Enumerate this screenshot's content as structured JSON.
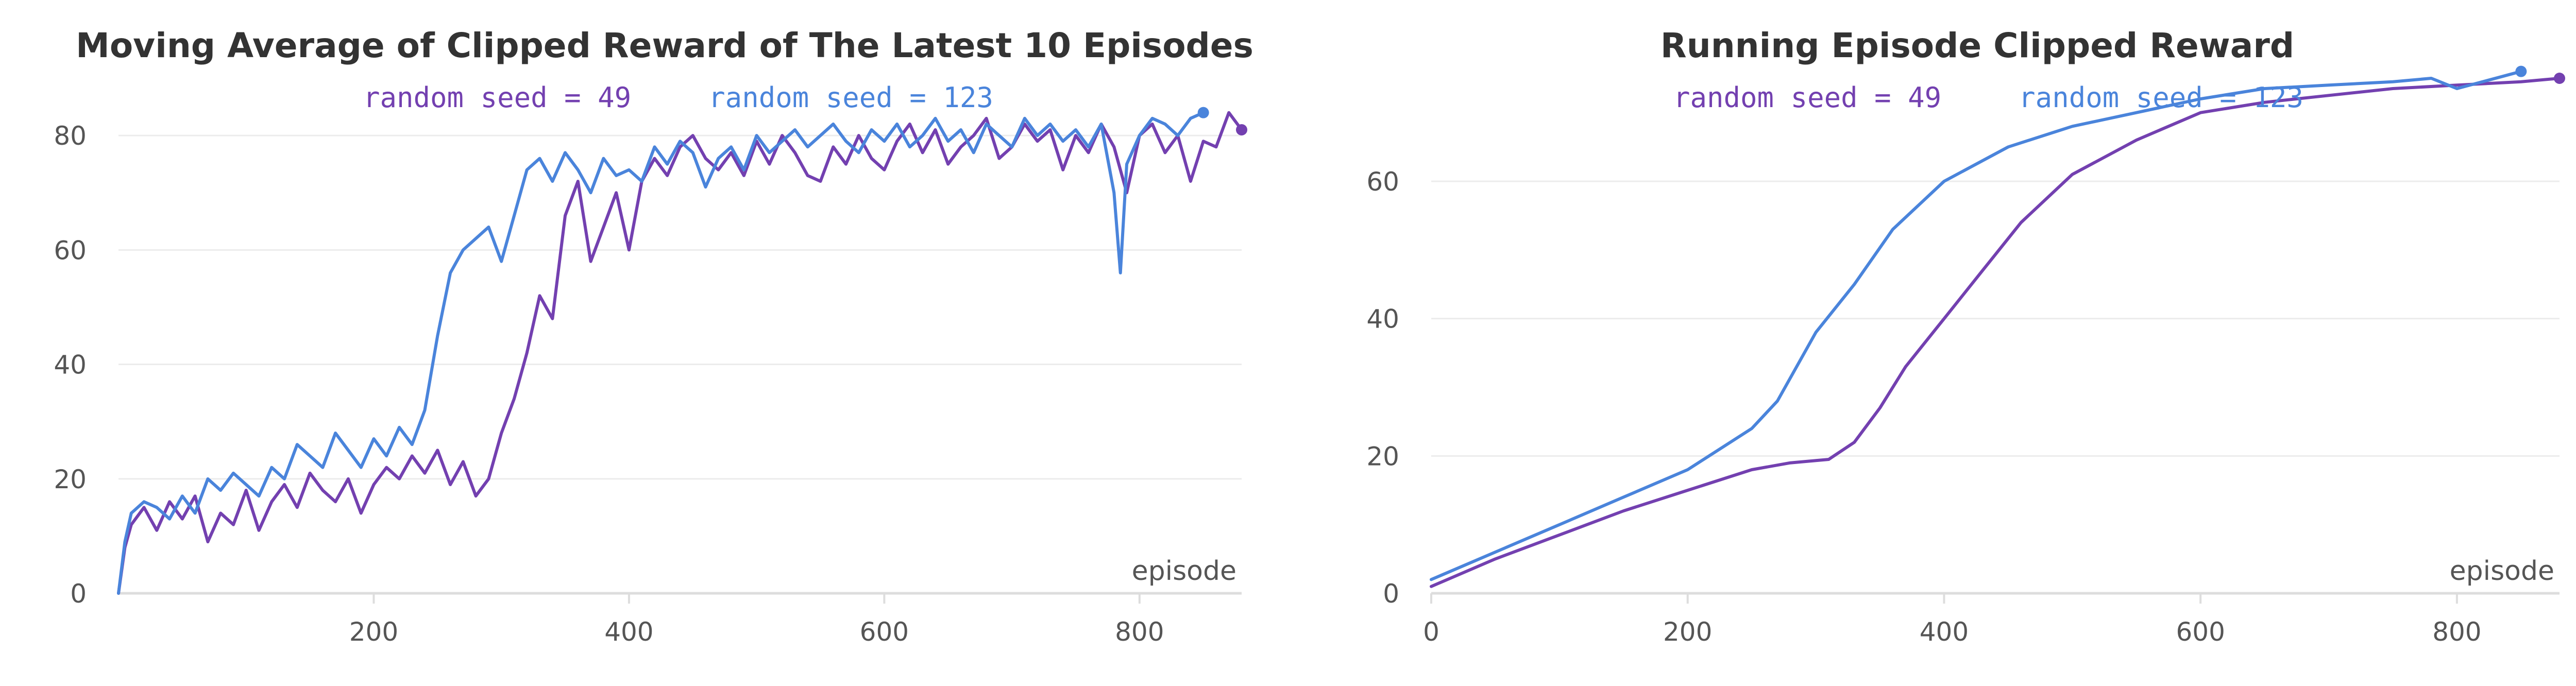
{
  "colors": {
    "seed49": "#7340b0",
    "seed123": "#4a84db",
    "grid": "#ececec",
    "axis": "#dddddd",
    "tick": "#555555",
    "title": "#333333"
  },
  "chart_data": [
    {
      "type": "line",
      "title": "Moving Average of Clipped Reward of The Latest 10 Episodes",
      "xlabel": "episode",
      "ylabel": "",
      "xlim": [
        0,
        880
      ],
      "ylim": [
        0,
        90
      ],
      "x_ticks": [
        200,
        400,
        600,
        800
      ],
      "y_ticks": [
        0,
        20,
        40,
        60,
        80
      ],
      "grid": true,
      "legend": "top-center",
      "series": [
        {
          "name": "random seed = 49",
          "x": [
            0,
            5,
            10,
            20,
            30,
            40,
            50,
            60,
            70,
            80,
            90,
            100,
            110,
            120,
            130,
            140,
            150,
            160,
            170,
            180,
            190,
            200,
            210,
            220,
            230,
            240,
            250,
            260,
            270,
            280,
            290,
            300,
            310,
            320,
            330,
            340,
            350,
            360,
            370,
            380,
            390,
            400,
            410,
            420,
            430,
            440,
            450,
            460,
            470,
            480,
            490,
            500,
            510,
            520,
            530,
            540,
            550,
            560,
            570,
            580,
            590,
            600,
            610,
            620,
            630,
            640,
            650,
            660,
            670,
            680,
            690,
            700,
            710,
            720,
            730,
            740,
            750,
            760,
            770,
            780,
            790,
            800,
            810,
            820,
            830,
            840,
            850,
            860,
            870,
            880
          ],
          "y": [
            0,
            8,
            12,
            15,
            11,
            16,
            13,
            17,
            9,
            14,
            12,
            18,
            11,
            16,
            19,
            15,
            21,
            18,
            16,
            20,
            14,
            19,
            22,
            20,
            24,
            21,
            25,
            19,
            23,
            17,
            20,
            28,
            34,
            42,
            52,
            48,
            66,
            72,
            58,
            64,
            70,
            60,
            72,
            76,
            73,
            78,
            80,
            76,
            74,
            77,
            73,
            79,
            75,
            80,
            77,
            73,
            72,
            78,
            75,
            80,
            76,
            74,
            79,
            82,
            77,
            81,
            75,
            78,
            80,
            83,
            76,
            78,
            82,
            79,
            81,
            74,
            80,
            77,
            82,
            78,
            70,
            80,
            82,
            77,
            80,
            72,
            79,
            78,
            84,
            81
          ]
        },
        {
          "name": "random seed = 123",
          "x": [
            0,
            5,
            10,
            20,
            30,
            40,
            50,
            60,
            70,
            80,
            90,
            100,
            110,
            120,
            130,
            140,
            150,
            160,
            170,
            180,
            190,
            200,
            210,
            220,
            230,
            240,
            250,
            260,
            270,
            280,
            290,
            300,
            310,
            320,
            330,
            340,
            350,
            360,
            370,
            380,
            390,
            400,
            410,
            420,
            430,
            440,
            450,
            460,
            470,
            480,
            490,
            500,
            510,
            520,
            530,
            540,
            550,
            560,
            570,
            580,
            590,
            600,
            610,
            620,
            630,
            640,
            650,
            660,
            670,
            680,
            690,
            700,
            710,
            720,
            730,
            740,
            750,
            760,
            770,
            780,
            785,
            790,
            800,
            810,
            820,
            830,
            840,
            850
          ],
          "y": [
            0,
            9,
            14,
            16,
            15,
            13,
            17,
            14,
            20,
            18,
            21,
            19,
            17,
            22,
            20,
            26,
            24,
            22,
            28,
            25,
            22,
            27,
            24,
            29,
            26,
            32,
            45,
            56,
            60,
            62,
            64,
            58,
            66,
            74,
            76,
            72,
            77,
            74,
            70,
            76,
            73,
            74,
            72,
            78,
            75,
            79,
            77,
            71,
            76,
            78,
            74,
            80,
            77,
            79,
            81,
            78,
            80,
            82,
            79,
            77,
            81,
            79,
            82,
            78,
            80,
            83,
            79,
            81,
            77,
            82,
            80,
            78,
            83,
            80,
            82,
            79,
            81,
            78,
            82,
            70,
            56,
            75,
            80,
            83,
            82,
            80,
            83,
            84
          ]
        }
      ]
    },
    {
      "type": "line",
      "title": "Running Episode Clipped Reward",
      "xlabel": "episode",
      "ylabel": "",
      "xlim": [
        0,
        880
      ],
      "ylim": [
        0,
        75
      ],
      "x_ticks": [
        0,
        200,
        400,
        600,
        800
      ],
      "y_ticks": [
        0,
        20,
        40,
        60
      ],
      "grid": true,
      "legend": "top-center",
      "series": [
        {
          "name": "random seed = 49",
          "x": [
            0,
            50,
            100,
            150,
            200,
            250,
            280,
            310,
            330,
            350,
            370,
            400,
            430,
            460,
            500,
            550,
            600,
            650,
            700,
            750,
            800,
            850,
            880
          ],
          "y": [
            1,
            5,
            8.5,
            12,
            15,
            18,
            19,
            19.5,
            22,
            27,
            33,
            40,
            47,
            54,
            61,
            66,
            70,
            71.5,
            72.5,
            73.5,
            74,
            74.5,
            75
          ]
        },
        {
          "name": "random seed = 123",
          "x": [
            0,
            50,
            100,
            150,
            200,
            250,
            270,
            300,
            330,
            360,
            400,
            450,
            500,
            550,
            600,
            650,
            700,
            750,
            780,
            800,
            850
          ],
          "y": [
            2,
            6,
            10,
            14,
            18,
            24,
            28,
            38,
            45,
            53,
            60,
            65,
            68,
            70,
            72,
            73.5,
            74,
            74.5,
            75,
            73.5,
            76
          ]
        }
      ]
    }
  ]
}
